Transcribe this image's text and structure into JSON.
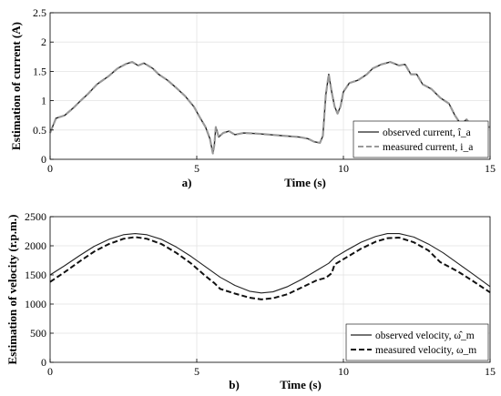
{
  "chart_data": [
    {
      "type": "line",
      "caption": "a)",
      "xlabel": "Time (s)",
      "ylabel": "Estimation of current (A)",
      "xlim": [
        0,
        15
      ],
      "ylim": [
        0,
        2.5
      ],
      "xticks": [
        "0",
        "5",
        "10",
        "15"
      ],
      "yticks": [
        "0",
        "0.5",
        "1",
        "1.5",
        "2",
        "2.5"
      ],
      "grid": true,
      "legend_position": "bottom-right",
      "series": [
        {
          "name": "observed current, î_a",
          "color": "#222222",
          "style": "solid",
          "x": [
            0,
            0.2,
            0.5,
            0.8,
            1.0,
            1.3,
            1.6,
            2.0,
            2.3,
            2.6,
            2.8,
            3.0,
            3.2,
            3.5,
            3.7,
            4.0,
            4.3,
            4.6,
            4.9,
            5.1,
            5.3,
            5.45,
            5.55,
            5.6,
            5.65,
            5.75,
            5.9,
            6.1,
            6.3,
            6.6,
            7.0,
            7.5,
            8.0,
            8.5,
            8.8,
            9.0,
            9.2,
            9.3,
            9.4,
            9.5,
            9.6,
            9.7,
            9.8,
            9.9,
            10.0,
            10.2,
            10.5,
            10.8,
            11.0,
            11.3,
            11.6,
            11.9,
            12.1,
            12.3,
            12.5,
            12.7,
            13.0,
            13.3,
            13.6,
            13.8,
            14.0,
            14.2,
            14.4,
            14.6,
            14.8,
            15.0
          ],
          "y": [
            0.45,
            0.7,
            0.75,
            0.88,
            0.98,
            1.12,
            1.28,
            1.42,
            1.55,
            1.63,
            1.66,
            1.6,
            1.64,
            1.55,
            1.45,
            1.35,
            1.22,
            1.08,
            0.9,
            0.72,
            0.55,
            0.35,
            0.1,
            0.25,
            0.55,
            0.38,
            0.45,
            0.48,
            0.42,
            0.45,
            0.44,
            0.42,
            0.4,
            0.38,
            0.35,
            0.3,
            0.28,
            0.4,
            1.1,
            1.45,
            1.15,
            0.9,
            0.78,
            0.9,
            1.15,
            1.3,
            1.35,
            1.45,
            1.55,
            1.62,
            1.66,
            1.6,
            1.62,
            1.45,
            1.45,
            1.28,
            1.2,
            1.05,
            0.95,
            0.75,
            0.6,
            0.68,
            0.55,
            0.62,
            0.55,
            0.55
          ]
        },
        {
          "name": "measured current, i_a",
          "color": "#999999",
          "style": "dashed",
          "x": [
            0,
            0.2,
            0.5,
            0.8,
            1.0,
            1.3,
            1.6,
            2.0,
            2.3,
            2.6,
            2.8,
            3.0,
            3.2,
            3.5,
            3.7,
            4.0,
            4.3,
            4.6,
            4.9,
            5.1,
            5.3,
            5.45,
            5.55,
            5.6,
            5.65,
            5.75,
            5.9,
            6.1,
            6.3,
            6.6,
            7.0,
            7.5,
            8.0,
            8.5,
            8.8,
            9.0,
            9.2,
            9.3,
            9.4,
            9.5,
            9.6,
            9.7,
            9.8,
            9.9,
            10.0,
            10.2,
            10.5,
            10.8,
            11.0,
            11.3,
            11.6,
            11.9,
            12.1,
            12.3,
            12.5,
            12.7,
            13.0,
            13.3,
            13.6,
            13.8,
            14.0,
            14.2,
            14.4,
            14.6,
            14.8,
            15.0
          ],
          "y": [
            0.45,
            0.7,
            0.75,
            0.88,
            0.98,
            1.12,
            1.28,
            1.42,
            1.55,
            1.63,
            1.66,
            1.6,
            1.64,
            1.55,
            1.45,
            1.35,
            1.22,
            1.08,
            0.9,
            0.72,
            0.55,
            0.35,
            0.1,
            0.25,
            0.55,
            0.38,
            0.45,
            0.48,
            0.42,
            0.45,
            0.44,
            0.42,
            0.4,
            0.38,
            0.35,
            0.3,
            0.28,
            0.4,
            1.1,
            1.45,
            1.15,
            0.9,
            0.78,
            0.9,
            1.15,
            1.3,
            1.35,
            1.45,
            1.55,
            1.62,
            1.66,
            1.6,
            1.62,
            1.45,
            1.45,
            1.28,
            1.2,
            1.05,
            0.95,
            0.75,
            0.6,
            0.68,
            0.55,
            0.62,
            0.55,
            0.55
          ]
        }
      ]
    },
    {
      "type": "line",
      "caption": "b)",
      "xlabel": "Time (s)",
      "ylabel": "Estimation of velocity (r.p.m.)",
      "xlim": [
        0,
        15
      ],
      "ylim": [
        0,
        2500
      ],
      "xticks": [
        "0",
        "5",
        "10",
        "15"
      ],
      "yticks": [
        "0",
        "500",
        "1000",
        "1500",
        "2000",
        "2500"
      ],
      "grid": true,
      "legend_position": "bottom-right",
      "series": [
        {
          "name": "observed velocity, ω̂_m",
          "color": "#222222",
          "style": "solid",
          "x": [
            0,
            0.5,
            1.0,
            1.5,
            2.0,
            2.5,
            2.9,
            3.3,
            3.8,
            4.3,
            4.8,
            5.3,
            5.8,
            6.3,
            6.8,
            7.2,
            7.6,
            8.1,
            8.6,
            9.1,
            9.5,
            9.7,
            10.1,
            10.6,
            11.1,
            11.5,
            11.9,
            12.4,
            12.9,
            13.4,
            13.9,
            14.4,
            15.0
          ],
          "y": [
            1500,
            1660,
            1830,
            1990,
            2110,
            2190,
            2210,
            2190,
            2110,
            1980,
            1820,
            1640,
            1460,
            1320,
            1220,
            1190,
            1210,
            1300,
            1430,
            1580,
            1700,
            1800,
            1920,
            2060,
            2160,
            2210,
            2210,
            2150,
            2030,
            1880,
            1700,
            1520,
            1300
          ]
        },
        {
          "name": "measured velocity, ω_m",
          "color": "#111111",
          "style": "dashed",
          "x": [
            0,
            0.5,
            1.0,
            1.5,
            2.0,
            2.5,
            2.9,
            3.3,
            3.8,
            4.3,
            4.8,
            5.3,
            5.6,
            5.8,
            6.3,
            6.8,
            7.2,
            7.6,
            8.1,
            8.6,
            9.1,
            9.4,
            9.6,
            9.7,
            10.1,
            10.6,
            11.1,
            11.5,
            11.9,
            12.4,
            12.9,
            13.3,
            13.6,
            13.9,
            14.4,
            15.0
          ],
          "y": [
            1380,
            1550,
            1730,
            1900,
            2030,
            2120,
            2150,
            2120,
            2030,
            1880,
            1700,
            1480,
            1360,
            1260,
            1180,
            1110,
            1080,
            1100,
            1170,
            1290,
            1410,
            1450,
            1530,
            1680,
            1800,
            1950,
            2070,
            2130,
            2140,
            2060,
            1920,
            1720,
            1640,
            1560,
            1400,
            1200
          ]
        }
      ]
    }
  ]
}
